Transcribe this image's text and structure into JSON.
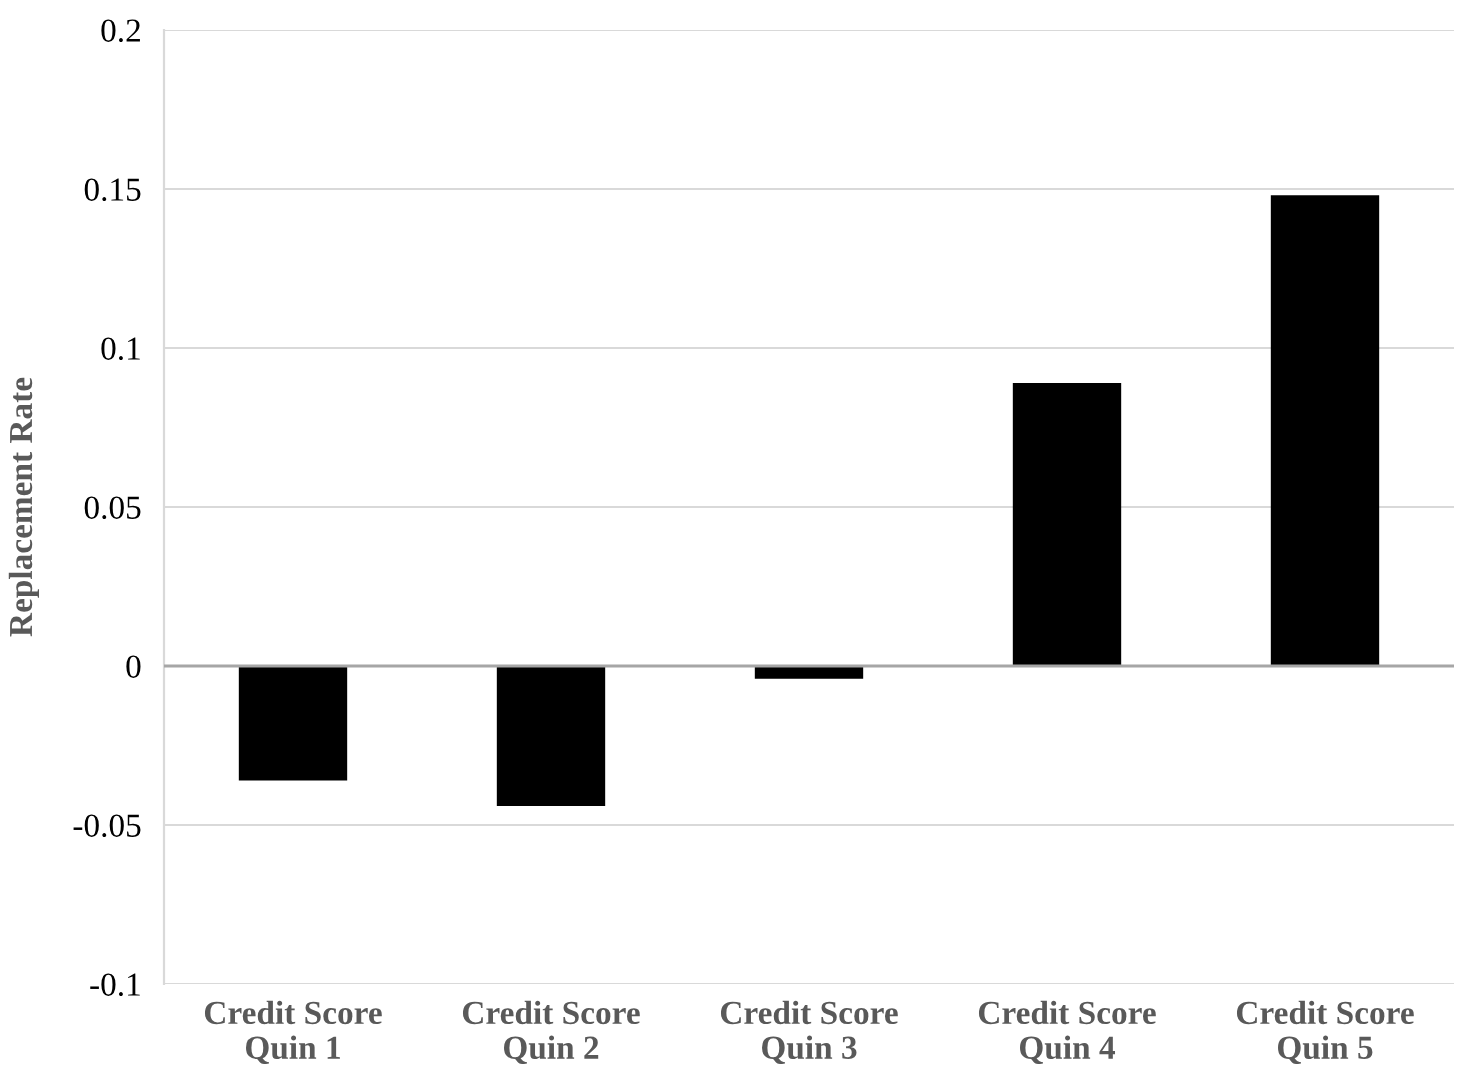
{
  "chart_data": {
    "type": "bar",
    "ylabel": "Replacement Rate",
    "categories": [
      "Credit Score\nQuin 1",
      "Credit Score\nQuin 2",
      "Credit Score\nQuin 3",
      "Credit Score\nQuin 4",
      "Credit Score\nQuin 5"
    ],
    "values": [
      -0.036,
      -0.044,
      -0.004,
      0.089,
      0.148
    ],
    "color": "#000000",
    "ylim": [
      -0.1,
      0.2
    ],
    "yticks": [
      -0.1,
      -0.05,
      0,
      0.05,
      0.1,
      0.15,
      0.2
    ],
    "grid": "y"
  }
}
